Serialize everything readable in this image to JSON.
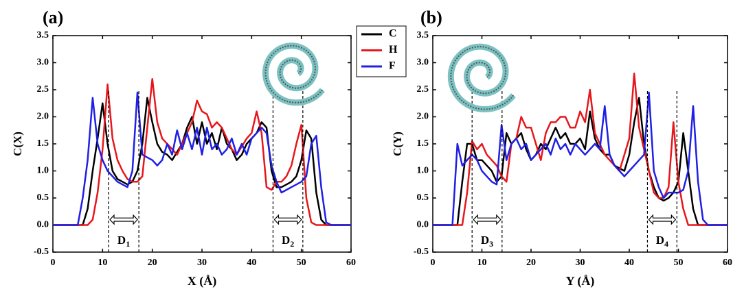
{
  "chart_data": [
    {
      "type": "line",
      "title": "(a)",
      "xlabel": "X (Å)",
      "ylabel": "C(X)",
      "xlim": [
        0,
        60
      ],
      "xticks": [
        0,
        10,
        20,
        30,
        40,
        50,
        60
      ],
      "ylim": [
        -0.5,
        3.5
      ],
      "yticks": [
        -0.5,
        {
          "value": 0,
          "label": "0.0"
        },
        0.5,
        {
          "value": 1,
          "label": "1.0"
        },
        1.5,
        {
          "value": 2,
          "label": "2.0"
        },
        2.5,
        {
          "value": 3,
          "label": "3.0"
        },
        3.5
      ],
      "legend": "right",
      "x": [
        0,
        1,
        2,
        3,
        4,
        5,
        6,
        7,
        8,
        9,
        10,
        11,
        12,
        13,
        14,
        15,
        16,
        17,
        18,
        19,
        20,
        21,
        22,
        23,
        24,
        25,
        26,
        27,
        28,
        29,
        30,
        31,
        32,
        33,
        34,
        35,
        36,
        37,
        38,
        39,
        40,
        41,
        42,
        43,
        44,
        45,
        46,
        47,
        48,
        49,
        50,
        51,
        52,
        53,
        54,
        55,
        56,
        57,
        58,
        59,
        60
      ],
      "series": [
        {
          "name": "C",
          "color": "#000000",
          "values": [
            0,
            0,
            0,
            0,
            0,
            0,
            0,
            0.3,
            1.0,
            1.6,
            2.25,
            1.5,
            1.0,
            0.85,
            0.8,
            0.75,
            0.8,
            1.0,
            1.5,
            2.35,
            1.9,
            1.5,
            1.35,
            1.3,
            1.2,
            1.35,
            1.5,
            1.8,
            2.0,
            1.5,
            1.9,
            1.5,
            1.7,
            1.4,
            1.8,
            1.5,
            1.4,
            1.2,
            1.3,
            1.5,
            1.6,
            1.7,
            1.9,
            1.8,
            1.0,
            0.7,
            0.7,
            0.75,
            0.8,
            0.9,
            1.2,
            1.75,
            1.6,
            0.6,
            0.1,
            0,
            0,
            0,
            0,
            0,
            0
          ]
        },
        {
          "name": "H",
          "color": "#e8161b",
          "values": [
            0,
            0,
            0,
            0,
            0,
            0,
            0,
            0,
            0.1,
            0.6,
            1.4,
            2.6,
            1.6,
            1.2,
            1.0,
            0.85,
            0.8,
            0.8,
            0.9,
            1.8,
            2.7,
            1.9,
            1.6,
            1.5,
            1.4,
            1.3,
            1.5,
            1.7,
            1.9,
            2.3,
            2.1,
            2.05,
            1.8,
            1.9,
            1.8,
            1.6,
            1.4,
            1.3,
            1.45,
            1.6,
            1.7,
            2.1,
            1.7,
            0.7,
            0.65,
            0.8,
            0.8,
            0.9,
            1.1,
            1.5,
            1.85,
            0.5,
            0.05,
            0,
            0,
            0,
            0,
            0,
            0,
            0,
            0
          ]
        },
        {
          "name": "F",
          "color": "#1f1fe6",
          "values": [
            0,
            0,
            0,
            0,
            0,
            0,
            0.5,
            1.2,
            2.35,
            1.5,
            1.2,
            1.0,
            0.9,
            0.8,
            0.75,
            0.7,
            1.0,
            2.45,
            1.3,
            1.25,
            1.2,
            1.1,
            1.2,
            1.5,
            1.3,
            1.75,
            1.4,
            1.7,
            1.4,
            1.8,
            1.3,
            1.8,
            1.4,
            1.5,
            1.3,
            1.4,
            1.6,
            1.3,
            1.5,
            1.3,
            1.6,
            1.7,
            1.8,
            1.7,
            1.1,
            0.8,
            0.6,
            0.65,
            0.7,
            0.75,
            0.8,
            0.9,
            1.5,
            1.65,
            0.7,
            0.05,
            0,
            0,
            0,
            0,
            0
          ]
        }
      ],
      "annotations": [
        {
          "text": "D",
          "sub": "1",
          "x1": 11.2,
          "x2": 17.3
        },
        {
          "text": "D",
          "sub": "2",
          "x1": 44.3,
          "x2": 50.3
        }
      ]
    },
    {
      "type": "line",
      "title": "(b)",
      "xlabel": "Y (Å)",
      "ylabel": "C(Y)",
      "xlim": [
        0,
        60
      ],
      "xticks": [
        0,
        10,
        20,
        30,
        40,
        50,
        60
      ],
      "ylim": [
        -0.5,
        3.5
      ],
      "yticks": [
        -0.5,
        {
          "value": 0,
          "label": "0.0"
        },
        0.5,
        {
          "value": 1,
          "label": "1.0"
        },
        1.5,
        {
          "value": 2,
          "label": "2.0"
        },
        2.5,
        {
          "value": 3,
          "label": "3.0"
        },
        3.5
      ],
      "x": [
        0,
        1,
        2,
        3,
        4,
        5,
        6,
        7,
        8,
        9,
        10,
        11,
        12,
        13,
        14,
        15,
        16,
        17,
        18,
        19,
        20,
        21,
        22,
        23,
        24,
        25,
        26,
        27,
        28,
        29,
        30,
        31,
        32,
        33,
        34,
        35,
        36,
        37,
        38,
        39,
        40,
        41,
        42,
        43,
        44,
        45,
        46,
        47,
        48,
        49,
        50,
        51,
        52,
        53,
        54,
        55,
        56,
        57,
        58,
        59,
        60
      ],
      "series": [
        {
          "color": "#000000",
          "values": [
            0,
            0,
            0,
            0,
            0,
            0,
            0.8,
            1.5,
            1.5,
            1.2,
            1.2,
            1.1,
            1.0,
            0.8,
            0.9,
            1.7,
            1.5,
            1.6,
            1.7,
            1.4,
            1.2,
            1.3,
            1.5,
            1.4,
            1.6,
            1.8,
            1.6,
            1.7,
            1.5,
            1.5,
            1.6,
            1.4,
            2.1,
            1.6,
            1.4,
            1.3,
            1.3,
            1.1,
            1.05,
            1.0,
            1.3,
            1.9,
            2.35,
            1.5,
            1.0,
            0.7,
            0.5,
            0.45,
            0.5,
            0.6,
            0.8,
            1.7,
            1.0,
            0.3,
            0,
            0,
            0,
            0,
            0,
            0,
            0
          ]
        },
        {
          "color": "#e8161b",
          "values": [
            0,
            0,
            0,
            0,
            0,
            0,
            0,
            0.6,
            1.55,
            1.4,
            1.5,
            1.3,
            1.2,
            1.1,
            0.9,
            0.8,
            1.5,
            1.6,
            2.0,
            1.8,
            1.8,
            1.5,
            1.2,
            1.7,
            1.9,
            1.9,
            2.0,
            2.0,
            1.8,
            1.8,
            2.1,
            1.9,
            2.5,
            1.7,
            1.5,
            1.3,
            1.2,
            1.1,
            1.0,
            1.3,
            1.6,
            2.8,
            1.8,
            1.4,
            1.0,
            0.6,
            0.5,
            0.5,
            0.7,
            1.9,
            0.8,
            0.3,
            0,
            0,
            0,
            0,
            0,
            0,
            0,
            0,
            0
          ]
        },
        {
          "color": "#1f1fe6",
          "values": [
            0,
            0,
            0,
            0,
            0,
            1.5,
            1.1,
            1.2,
            1.3,
            1.2,
            1.0,
            0.9,
            0.8,
            0.75,
            1.85,
            1.2,
            1.5,
            1.6,
            1.4,
            1.5,
            1.2,
            1.3,
            1.4,
            1.5,
            1.3,
            1.6,
            1.4,
            1.5,
            1.3,
            1.5,
            1.4,
            1.3,
            1.4,
            1.5,
            1.4,
            2.2,
            1.3,
            1.1,
            1.0,
            0.9,
            1.0,
            1.1,
            1.2,
            1.3,
            2.45,
            1.0,
            0.7,
            0.5,
            0.6,
            0.6,
            0.6,
            0.65,
            1.0,
            2.2,
            0.8,
            0.1,
            0,
            0,
            0,
            0,
            0
          ]
        }
      ],
      "annotations": [
        {
          "text": "D",
          "sub": "3",
          "x1": 8.0,
          "x2": 14.1
        },
        {
          "text": "D",
          "sub": "4",
          "x1": 43.7,
          "x2": 49.7
        }
      ]
    }
  ]
}
